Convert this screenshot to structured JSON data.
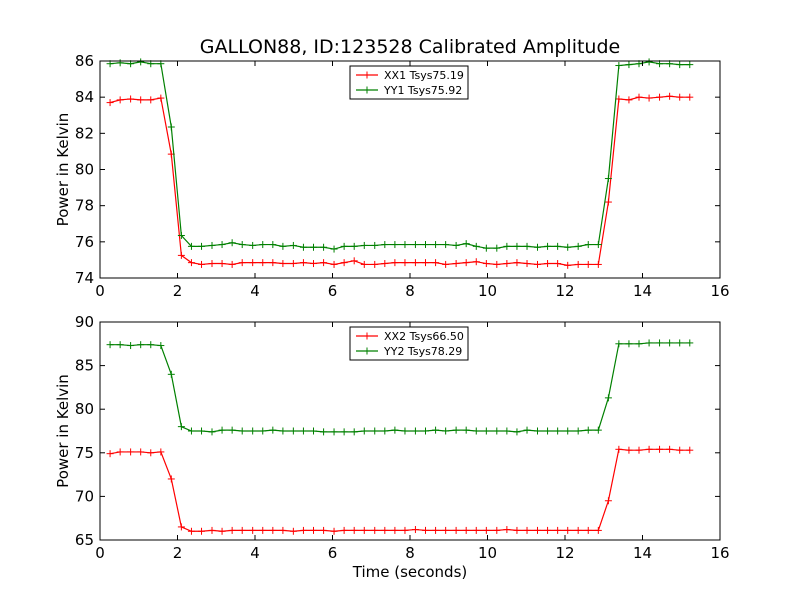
{
  "title": "GALLON88, ID:123528 Calibrated Amplitude",
  "colors": {
    "red": "#ff0000",
    "green": "#008000"
  },
  "chart_data": [
    {
      "type": "line",
      "xlabel": "",
      "ylabel": "Power in Kelvin",
      "xlim": [
        0,
        16
      ],
      "ylim": [
        74,
        86
      ],
      "xticks": [
        "0",
        "2",
        "4",
        "6",
        "8",
        "10",
        "12",
        "14",
        "16"
      ],
      "yticks": [
        "74",
        "76",
        "78",
        "80",
        "82",
        "84",
        "86"
      ],
      "legend_position": "top-center",
      "x": [
        0.26,
        0.52,
        0.79,
        1.05,
        1.31,
        1.57,
        1.84,
        2.1,
        2.36,
        2.62,
        2.89,
        3.15,
        3.41,
        3.67,
        3.94,
        4.2,
        4.46,
        4.72,
        4.99,
        5.25,
        5.51,
        5.77,
        6.04,
        6.3,
        6.56,
        6.82,
        7.09,
        7.35,
        7.61,
        7.87,
        8.14,
        8.4,
        8.66,
        8.92,
        9.19,
        9.45,
        9.71,
        9.97,
        10.24,
        10.5,
        10.76,
        11.02,
        11.29,
        11.55,
        11.81,
        12.07,
        12.34,
        12.6,
        12.86,
        13.12,
        13.39,
        13.65,
        13.91,
        14.17,
        14.44,
        14.7,
        14.96,
        15.22
      ],
      "series": [
        {
          "name": "XX1 Tsys75.19",
          "color": "#ff0000",
          "values": [
            83.7,
            83.85,
            83.9,
            83.85,
            83.85,
            83.95,
            80.85,
            75.25,
            74.85,
            74.75,
            74.8,
            74.8,
            74.75,
            74.85,
            74.85,
            74.85,
            74.85,
            74.8,
            74.8,
            74.85,
            74.8,
            74.85,
            74.75,
            74.85,
            74.95,
            74.75,
            74.75,
            74.8,
            74.85,
            74.85,
            74.85,
            74.85,
            74.85,
            74.75,
            74.8,
            74.85,
            74.9,
            74.8,
            74.75,
            74.8,
            74.85,
            74.8,
            74.75,
            74.8,
            74.8,
            74.7,
            74.75,
            74.75,
            74.75,
            78.2,
            83.9,
            83.85,
            84.0,
            83.95,
            84.0,
            84.05,
            84.0,
            84.0
          ]
        },
        {
          "name": "YY1 Tsys75.92",
          "color": "#008000",
          "values": [
            85.85,
            85.9,
            85.85,
            85.95,
            85.85,
            85.85,
            82.35,
            76.35,
            75.75,
            75.75,
            75.8,
            75.85,
            75.95,
            75.85,
            75.8,
            75.85,
            75.85,
            75.75,
            75.8,
            75.7,
            75.7,
            75.7,
            75.6,
            75.75,
            75.75,
            75.8,
            75.8,
            75.85,
            75.85,
            75.85,
            75.85,
            75.85,
            75.85,
            75.85,
            75.8,
            75.9,
            75.75,
            75.65,
            75.65,
            75.75,
            75.75,
            75.75,
            75.7,
            75.75,
            75.75,
            75.7,
            75.75,
            75.85,
            75.85,
            79.5,
            85.75,
            85.8,
            85.85,
            85.95,
            85.85,
            85.85,
            85.8,
            85.8
          ]
        }
      ]
    },
    {
      "type": "line",
      "xlabel": "Time (seconds)",
      "ylabel": "Power in Kelvin",
      "xlim": [
        0,
        16
      ],
      "ylim": [
        65,
        90
      ],
      "xticks": [
        "0",
        "2",
        "4",
        "6",
        "8",
        "10",
        "12",
        "14",
        "16"
      ],
      "yticks": [
        "65",
        "70",
        "75",
        "80",
        "85",
        "90"
      ],
      "legend_position": "top-center",
      "x": [
        0.26,
        0.52,
        0.79,
        1.05,
        1.31,
        1.57,
        1.84,
        2.1,
        2.36,
        2.62,
        2.89,
        3.15,
        3.41,
        3.67,
        3.94,
        4.2,
        4.46,
        4.72,
        4.99,
        5.25,
        5.51,
        5.77,
        6.04,
        6.3,
        6.56,
        6.82,
        7.09,
        7.35,
        7.61,
        7.87,
        8.14,
        8.4,
        8.66,
        8.92,
        9.19,
        9.45,
        9.71,
        9.97,
        10.24,
        10.5,
        10.76,
        11.02,
        11.29,
        11.55,
        11.81,
        12.07,
        12.34,
        12.6,
        12.86,
        13.12,
        13.39,
        13.65,
        13.91,
        14.17,
        14.44,
        14.7,
        14.96,
        15.22
      ],
      "series": [
        {
          "name": "XX2 Tsys66.50",
          "color": "#ff0000",
          "values": [
            74.9,
            75.1,
            75.1,
            75.1,
            75.0,
            75.1,
            72.0,
            66.5,
            66.0,
            66.0,
            66.1,
            66.0,
            66.1,
            66.1,
            66.1,
            66.1,
            66.1,
            66.1,
            66.0,
            66.1,
            66.1,
            66.1,
            66.0,
            66.1,
            66.1,
            66.1,
            66.1,
            66.1,
            66.1,
            66.1,
            66.2,
            66.1,
            66.1,
            66.1,
            66.1,
            66.1,
            66.1,
            66.1,
            66.1,
            66.2,
            66.1,
            66.1,
            66.1,
            66.1,
            66.1,
            66.1,
            66.1,
            66.1,
            66.1,
            69.5,
            75.4,
            75.3,
            75.3,
            75.4,
            75.4,
            75.4,
            75.3,
            75.3
          ]
        },
        {
          "name": "YY2 Tsys78.29",
          "color": "#008000",
          "values": [
            87.4,
            87.4,
            87.3,
            87.4,
            87.4,
            87.3,
            84.0,
            78.0,
            77.5,
            77.5,
            77.4,
            77.6,
            77.6,
            77.5,
            77.5,
            77.5,
            77.6,
            77.5,
            77.5,
            77.5,
            77.5,
            77.4,
            77.4,
            77.4,
            77.4,
            77.5,
            77.5,
            77.5,
            77.6,
            77.5,
            77.5,
            77.5,
            77.6,
            77.5,
            77.6,
            77.6,
            77.5,
            77.5,
            77.5,
            77.5,
            77.4,
            77.6,
            77.5,
            77.5,
            77.5,
            77.5,
            77.5,
            77.6,
            77.6,
            81.3,
            87.5,
            87.5,
            87.5,
            87.6,
            87.6,
            87.6,
            87.6,
            87.6
          ]
        }
      ]
    }
  ]
}
